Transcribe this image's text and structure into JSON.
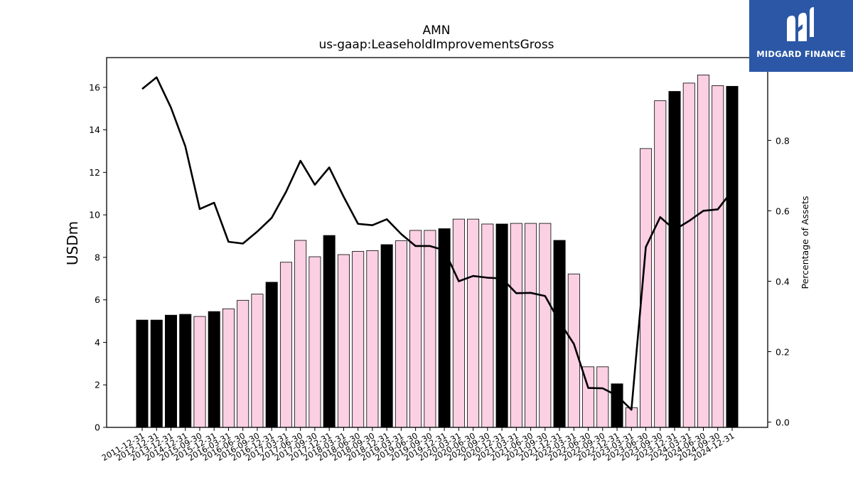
{
  "brand": {
    "name": "MIDGARD FINANCE",
    "logo_icon": "midgard-m-logo-icon",
    "background_color": "#2b57a6"
  },
  "chart_data": {
    "type": "bar",
    "title": "AMN",
    "subtitle": "us-gaap:LeaseholdImprovementsGross",
    "ylabel": "USDm",
    "y2label": "Percentage of Assets",
    "ylim": [
      0,
      17.4
    ],
    "y2lim": [
      -0.015,
      1.035
    ],
    "yticks": [
      0,
      2,
      4,
      6,
      8,
      10,
      12,
      14,
      16
    ],
    "y2ticks": [
      "0.0",
      "0.2",
      "0.4",
      "0.6",
      "0.8"
    ],
    "colors": {
      "annual_bar": "#000000",
      "quarter_bar": "#fcd0e3",
      "bar_edge": "#000000",
      "line": "#000000"
    },
    "categories": [
      "2011-12-31",
      "2012-12-31",
      "2013-12-31",
      "2014-12-31",
      "2015-09-30",
      "2015-12-31",
      "2016-03-31",
      "2016-06-30",
      "2016-09-30",
      "2016-12-31",
      "2017-03-31",
      "2017-06-30",
      "2017-09-30",
      "2017-12-31",
      "2018-03-31",
      "2018-06-30",
      "2018-09-30",
      "2018-12-31",
      "2019-03-31",
      "2019-06-30",
      "2019-09-30",
      "2019-12-31",
      "2020-03-31",
      "2020-06-30",
      "2020-09-30",
      "2020-12-31",
      "2021-03-31",
      "2021-06-30",
      "2021-09-30",
      "2021-12-31",
      "2022-03-31",
      "2022-06-30",
      "2022-09-30",
      "2022-12-31",
      "2023-03-31",
      "2023-06-30",
      "2023-09-30",
      "2023-12-31",
      "2024-03-31",
      "2024-06-30",
      "2024-09-30",
      "2024-12-31"
    ],
    "annual": [
      true,
      true,
      true,
      true,
      false,
      true,
      false,
      false,
      false,
      true,
      false,
      false,
      false,
      true,
      false,
      false,
      false,
      true,
      false,
      false,
      false,
      true,
      false,
      false,
      false,
      true,
      false,
      false,
      false,
      true,
      false,
      false,
      false,
      true,
      false,
      false,
      false,
      true,
      false,
      false,
      false,
      true
    ],
    "series": [
      {
        "name": "",
        "kind": "bar",
        "axis": "left",
        "values": [
          5.05,
          5.05,
          5.28,
          5.32,
          5.22,
          5.45,
          5.58,
          5.98,
          6.27,
          6.83,
          7.77,
          8.8,
          8.03,
          9.03,
          8.13,
          8.28,
          8.32,
          8.6,
          8.78,
          9.27,
          9.27,
          9.35,
          9.8,
          9.8,
          9.57,
          9.57,
          9.6,
          9.6,
          9.6,
          8.8,
          7.22,
          2.85,
          2.85,
          2.05,
          0.93,
          13.12,
          15.37,
          15.81,
          16.2,
          16.58,
          16.08,
          16.05
        ]
      },
      {
        "name": "",
        "kind": "line",
        "axis": "right",
        "values": [
          0.946,
          0.979,
          0.893,
          0.783,
          0.605,
          0.623,
          0.512,
          0.507,
          0.541,
          0.58,
          0.654,
          0.742,
          0.674,
          0.723,
          0.64,
          0.563,
          0.559,
          0.576,
          0.534,
          0.5,
          0.5,
          0.488,
          0.4,
          0.415,
          0.41,
          0.408,
          0.366,
          0.367,
          0.358,
          0.285,
          0.222,
          0.097,
          0.096,
          0.075,
          0.035,
          0.497,
          0.582,
          0.546,
          0.571,
          0.6,
          0.604,
          0.657
        ]
      }
    ]
  }
}
